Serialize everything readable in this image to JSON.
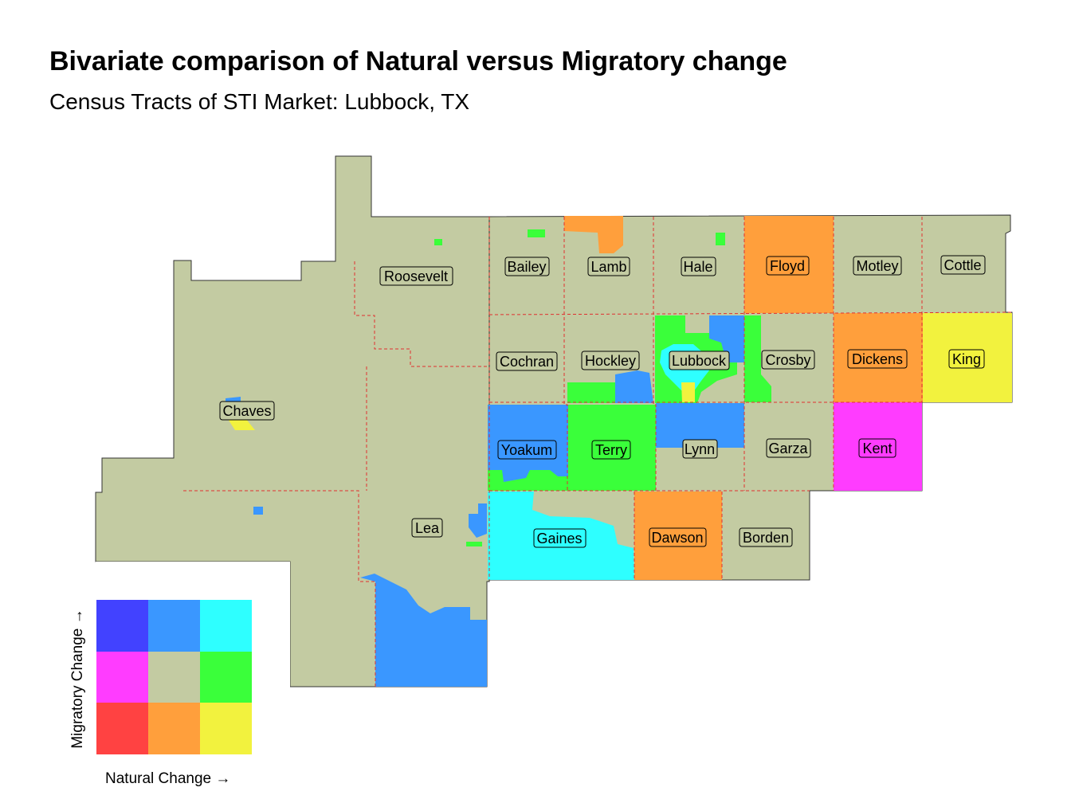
{
  "title": "Bivariate comparison of Natural versus Migratory change",
  "subtitle": "Census Tracts of STI Market: Lubbock, TX",
  "colors": {
    "base": "#c3cba2",
    "county_border": "#e03030",
    "outline": "#333333",
    "low_nat_high_mig": "#4242ff",
    "mid_nat_high_mig": "#3a97ff",
    "high_nat_high_mig": "#2effff",
    "low_nat_mid_mig": "#ff3cff",
    "mid_nat_mid_mig": "#c3cba2",
    "high_nat_mid_mig": "#3aff3a",
    "low_nat_low_mig": "#ff4242",
    "mid_nat_low_mig": "#ff9f3c",
    "high_nat_low_mig": "#f2f23e"
  },
  "counties": [
    {
      "name": "Roosevelt"
    },
    {
      "name": "Bailey"
    },
    {
      "name": "Lamb"
    },
    {
      "name": "Hale"
    },
    {
      "name": "Floyd"
    },
    {
      "name": "Motley"
    },
    {
      "name": "Cottle"
    },
    {
      "name": "Cochran"
    },
    {
      "name": "Hockley"
    },
    {
      "name": "Lubbock"
    },
    {
      "name": "Crosby"
    },
    {
      "name": "Dickens"
    },
    {
      "name": "King"
    },
    {
      "name": "Chaves"
    },
    {
      "name": "Yoakum"
    },
    {
      "name": "Terry"
    },
    {
      "name": "Lynn"
    },
    {
      "name": "Garza"
    },
    {
      "name": "Kent"
    },
    {
      "name": "Lea"
    },
    {
      "name": "Gaines"
    },
    {
      "name": "Dawson"
    },
    {
      "name": "Borden"
    }
  ],
  "legend": {
    "x_label": "Natural Change →",
    "y_label": "Migratory Change →",
    "grid": [
      [
        "#4242ff",
        "#3a97ff",
        "#2effff"
      ],
      [
        "#ff3cff",
        "#c3cba2",
        "#3aff3a"
      ],
      [
        "#ff4242",
        "#ff9f3c",
        "#f2f23e"
      ]
    ]
  }
}
